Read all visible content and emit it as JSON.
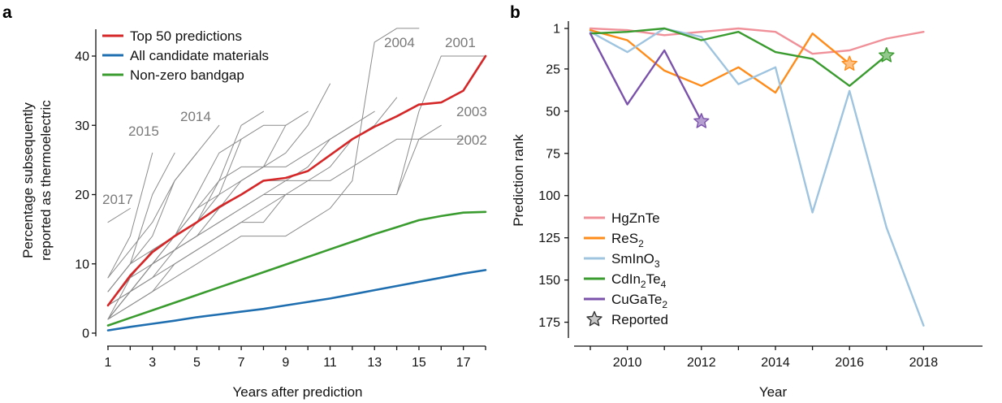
{
  "panels": {
    "a": {
      "letter": "a"
    },
    "b": {
      "letter": "b"
    }
  },
  "chart_data": [
    {
      "type": "line",
      "panel": "a",
      "xlabel": "Years after prediction",
      "ylabel": [
        "Percentage subsequently",
        "reported as thermoelectric"
      ],
      "xlim": [
        1,
        18
      ],
      "ylim": [
        0,
        44
      ],
      "xticks": [
        1,
        3,
        5,
        7,
        9,
        11,
        13,
        15,
        17
      ],
      "yticks": [
        0,
        10,
        20,
        30,
        40
      ],
      "legend_position": "top-left",
      "series": [
        {
          "name": "Top 50 predictions",
          "color": "#d62728",
          "x": [
            1,
            2,
            3,
            4,
            5,
            6,
            7,
            8,
            9,
            10,
            11,
            12,
            13,
            14,
            15,
            16,
            17,
            18
          ],
          "y": [
            4,
            8.3,
            11.7,
            14,
            16,
            18.2,
            20,
            22,
            22.4,
            23.4,
            25.7,
            28,
            29.8,
            31.3,
            33,
            33.3,
            35,
            40
          ]
        },
        {
          "name": "All candidate materials",
          "color": "#1f6fb0",
          "x": [
            1,
            2,
            3,
            4,
            5,
            6,
            7,
            8,
            9,
            10,
            11,
            12,
            13,
            14,
            15,
            16,
            17,
            18
          ],
          "y": [
            0.4,
            0.9,
            1.35,
            1.8,
            2.3,
            2.7,
            3.1,
            3.5,
            4,
            4.5,
            5,
            5.6,
            6.2,
            6.8,
            7.4,
            8,
            8.6,
            9.1
          ]
        },
        {
          "name": "Non-zero bandgap",
          "color": "#3a9b2f",
          "x": [
            1,
            2,
            3,
            4,
            5,
            6,
            7,
            8,
            9,
            10,
            11,
            12,
            13,
            14,
            15,
            16,
            17,
            18
          ],
          "y": [
            1.1,
            2.2,
            3.3,
            4.4,
            5.5,
            6.6,
            7.7,
            8.8,
            9.9,
            11,
            12.1,
            13.2,
            14.3,
            15.3,
            16.3,
            16.9,
            17.4,
            17.5
          ]
        }
      ],
      "background_lines": [
        {
          "label": "2001",
          "x": [
            1,
            2,
            3,
            4,
            5,
            6,
            7,
            8,
            9,
            10,
            11,
            12,
            13,
            14,
            15,
            16,
            17,
            18
          ],
          "y": [
            2,
            4,
            6,
            10,
            12,
            14,
            16,
            16,
            20,
            20,
            20,
            20,
            20,
            20,
            32,
            40,
            40,
            40
          ]
        },
        {
          "label": "2002",
          "x": [
            1,
            2,
            3,
            4,
            5,
            6,
            7,
            8,
            9,
            10,
            11,
            12,
            13,
            14,
            15,
            16,
            17
          ],
          "y": [
            4,
            6,
            10,
            12,
            14,
            16,
            18,
            20,
            20,
            20,
            20,
            20,
            20,
            20,
            28,
            28,
            28
          ]
        },
        {
          "label": "2003",
          "x": [
            1,
            2,
            3,
            4,
            5,
            6,
            7,
            8,
            9,
            10,
            11,
            12,
            13,
            14,
            15,
            16
          ],
          "y": [
            2,
            6,
            8,
            10,
            12,
            14,
            16,
            18,
            20,
            22,
            22,
            24,
            26,
            28,
            28,
            30
          ]
        },
        {
          "label": "2004",
          "x": [
            1,
            2,
            3,
            4,
            5,
            6,
            7,
            8,
            9,
            10,
            11,
            12,
            13,
            14,
            15
          ],
          "y": [
            2,
            4,
            6,
            8,
            10,
            12,
            14,
            14,
            14,
            16,
            18,
            22,
            42,
            44,
            44
          ]
        },
        {
          "label": "",
          "x": [
            1,
            2,
            3,
            4,
            5,
            6,
            7,
            8,
            9,
            10,
            11,
            12,
            13,
            14
          ],
          "y": [
            4,
            6,
            8,
            12,
            14,
            16,
            18,
            20,
            22,
            22,
            24,
            28,
            30,
            34
          ]
        },
        {
          "label": "",
          "x": [
            1,
            2,
            3,
            4,
            5,
            6,
            7,
            8,
            9,
            10,
            11,
            12,
            13
          ],
          "y": [
            2,
            6,
            10,
            12,
            14,
            18,
            20,
            22,
            22,
            24,
            28,
            30,
            32
          ]
        },
        {
          "label": "",
          "x": [
            1,
            2,
            3,
            4,
            5,
            6,
            7,
            8,
            9,
            10,
            11,
            12
          ],
          "y": [
            6,
            10,
            12,
            14,
            18,
            20,
            22,
            24,
            24,
            26,
            28,
            30
          ]
        },
        {
          "label": "",
          "x": [
            1,
            2,
            3,
            4,
            5,
            6,
            7,
            8,
            9,
            10,
            11
          ],
          "y": [
            4,
            8,
            10,
            14,
            16,
            18,
            22,
            24,
            26,
            30,
            36
          ]
        },
        {
          "label": "",
          "x": [
            1,
            2,
            3,
            4,
            5,
            6,
            7,
            8,
            9,
            10
          ],
          "y": [
            2,
            6,
            10,
            14,
            18,
            22,
            24,
            24,
            30,
            32
          ]
        },
        {
          "label": "",
          "x": [
            1,
            2,
            3,
            4,
            5,
            6,
            7,
            8,
            9
          ],
          "y": [
            2,
            6,
            10,
            12,
            16,
            20,
            28,
            30,
            30
          ]
        },
        {
          "label": "",
          "x": [
            1,
            2,
            3,
            4,
            5,
            6,
            7,
            8
          ],
          "y": [
            4,
            8,
            12,
            14,
            16,
            22,
            30,
            32
          ]
        },
        {
          "label": "",
          "x": [
            1,
            2,
            3,
            4,
            5,
            6,
            7
          ],
          "y": [
            2,
            8,
            12,
            14,
            20,
            26,
            28
          ]
        },
        {
          "label": "",
          "x": [
            1,
            2,
            3,
            4,
            5,
            6
          ],
          "y": [
            6,
            10,
            14,
            22,
            26,
            30
          ]
        },
        {
          "label": "",
          "x": [
            1,
            2,
            3,
            4,
            5
          ],
          "y": [
            8,
            12,
            16,
            22,
            26
          ]
        },
        {
          "label": "2014",
          "x": [
            1,
            2,
            3,
            4
          ],
          "y": [
            6,
            10,
            20,
            26
          ]
        },
        {
          "label": "2015",
          "x": [
            1,
            2,
            3
          ],
          "y": [
            8,
            14,
            26
          ]
        },
        {
          "label": "2017",
          "x": [
            1,
            2
          ],
          "y": [
            16,
            18
          ]
        }
      ],
      "annotations": [
        "2004",
        "2001",
        "2003",
        "2002",
        "2015",
        "2014",
        "2017"
      ]
    },
    {
      "type": "line",
      "panel": "b",
      "xlabel": "Year",
      "ylabel": "Prediction rank",
      "xlim": [
        2008.7,
        2018.5
      ],
      "ylim": [
        178,
        -5
      ],
      "y_inverted": true,
      "xticks": [
        2010,
        2012,
        2014,
        2016,
        2018
      ],
      "yticks": [
        1,
        25,
        50,
        75,
        100,
        125,
        150,
        175
      ],
      "legend_position": "bottom-left",
      "marker_legend": "Reported",
      "series": [
        {
          "name": "HgZnTe",
          "sub": [],
          "color": "#f0919a",
          "x": [
            2009,
            2010,
            2011,
            2012,
            2013,
            2014,
            2015,
            2016,
            2017,
            2018
          ],
          "y": [
            1,
            2,
            5,
            3,
            1,
            3,
            16,
            14,
            7,
            3
          ]
        },
        {
          "name": "ReS",
          "sub": [
            "2"
          ],
          "color": "#ff8c1a",
          "x": [
            2009,
            2010,
            2011,
            2012,
            2013,
            2014,
            2015,
            2016
          ],
          "y": [
            2,
            8,
            26,
            35,
            24,
            39,
            4,
            22
          ],
          "star": [
            2016,
            22
          ]
        },
        {
          "name": "SmInO",
          "sub": [
            "3"
          ],
          "color": "#9ec4e0",
          "x": [
            2009,
            2010,
            2011,
            2012,
            2013,
            2014,
            2015,
            2016,
            2017,
            2018
          ],
          "y": [
            3,
            15,
            1,
            6,
            34,
            24,
            110,
            38,
            119,
            177
          ]
        },
        {
          "name": "CdIn",
          "sub": [
            "2",
            "Te",
            "4"
          ],
          "color": "#3a9b2f",
          "x": [
            2009,
            2010,
            2011,
            2012,
            2013,
            2014,
            2015,
            2016,
            2017
          ],
          "y": [
            4,
            3,
            1,
            8,
            3,
            15,
            19,
            35,
            17
          ],
          "star": [
            2017,
            17
          ]
        },
        {
          "name": "CuGaTe",
          "sub": [
            "2"
          ],
          "color": "#7b52ab",
          "x": [
            2009,
            2010,
            2011,
            2012
          ],
          "y": [
            4,
            46,
            14,
            56
          ],
          "star": [
            2012,
            56
          ]
        }
      ]
    }
  ]
}
